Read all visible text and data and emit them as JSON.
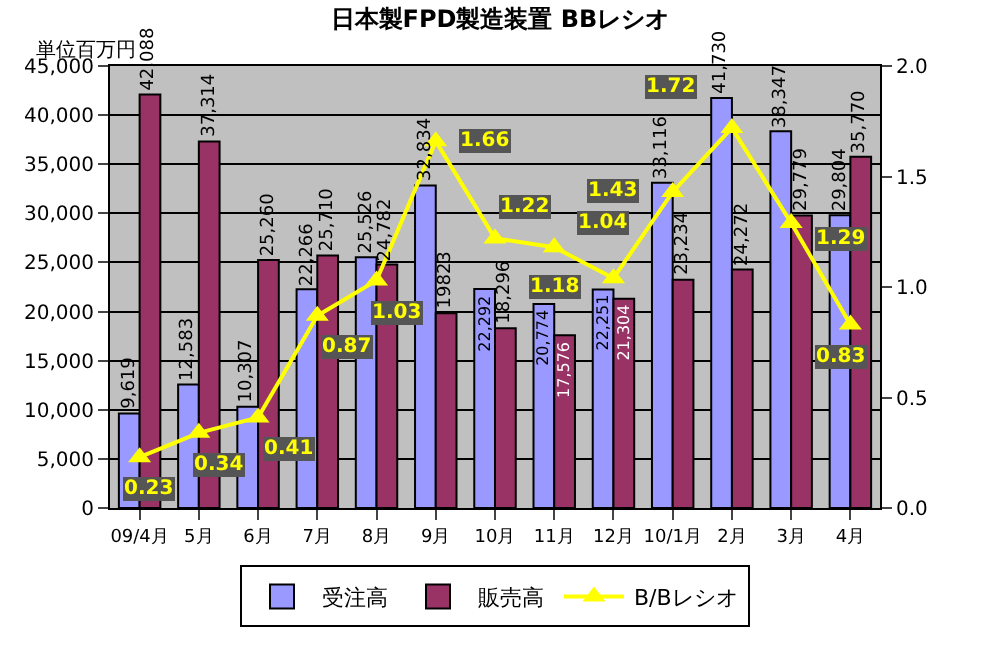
{
  "chart_data": {
    "type": "bar",
    "title": "日本製FPD製造装置 BBレシオ",
    "ylabel": "単位百万円",
    "categories": [
      "09/4月",
      "5月",
      "6月",
      "7月",
      "8月",
      "9月",
      "10月",
      "11月",
      "12月",
      "10/1月",
      "2月",
      "3月",
      "4月"
    ],
    "series": [
      {
        "name": "受注高",
        "color": "#9999ff",
        "values": [
          9619,
          12583,
          10307,
          22266,
          25526,
          32834,
          22292,
          20774,
          22251,
          33116,
          41730,
          38347,
          29804
        ],
        "value_labels": [
          "9,619",
          "12,583",
          "10,307",
          "22,266",
          "25,526",
          "32,834",
          "22,292",
          "20,774",
          "22,251",
          "33,116",
          "41,730",
          "38,347",
          "29,804"
        ]
      },
      {
        "name": "販売高",
        "color": "#993366",
        "values": [
          42088,
          37314,
          25260,
          25710,
          24782,
          19823,
          18296,
          17576,
          21304,
          23234,
          24272,
          29779,
          35770
        ],
        "value_labels": [
          "42,088",
          "37,314",
          "25,260",
          "25,710",
          "24,782",
          "19823",
          "18,296",
          "17,576",
          "21,304",
          "23,234",
          "24,272",
          "29,779",
          "35,770"
        ]
      },
      {
        "name": "B/Bレシオ",
        "type": "line",
        "axis": "y2",
        "color": "#ffff00",
        "marker": "triangle",
        "values": [
          0.23,
          0.34,
          0.41,
          0.87,
          1.03,
          1.66,
          1.22,
          1.18,
          1.04,
          1.43,
          1.72,
          1.29,
          0.83
        ],
        "value_labels": [
          "0.23",
          "0.34",
          "0.41",
          "0.87",
          "1.03",
          "1.66",
          "1.22",
          "1.18",
          "1.04",
          "1.43",
          "1.72",
          "1.29",
          "0.83"
        ]
      }
    ],
    "ylim": [
      0,
      45000
    ],
    "yticks": [
      0,
      {
        "value": 5000,
        "label": "5,000"
      },
      {
        "value": 10000,
        "label": "10,000"
      },
      {
        "value": 15000,
        "label": "15,000"
      },
      {
        "value": 20000,
        "label": "20,000"
      },
      {
        "value": 25000,
        "label": "25,000"
      },
      {
        "value": 30000,
        "label": "30,000"
      },
      {
        "value": 35000,
        "label": "35,000"
      },
      {
        "value": 40000,
        "label": "40,000"
      },
      {
        "value": 45000,
        "label": "45,000"
      }
    ],
    "y2lim": [
      0,
      2
    ],
    "y2ticks": [
      {
        "value": 0,
        "label": "0.0"
      },
      {
        "value": 0.5,
        "label": "0.5"
      },
      {
        "value": 1,
        "label": "1.0"
      },
      {
        "value": 1.5,
        "label": "1.5"
      },
      {
        "value": 2,
        "label": "2.0"
      }
    ],
    "grid": "y",
    "legend": "bottom"
  }
}
